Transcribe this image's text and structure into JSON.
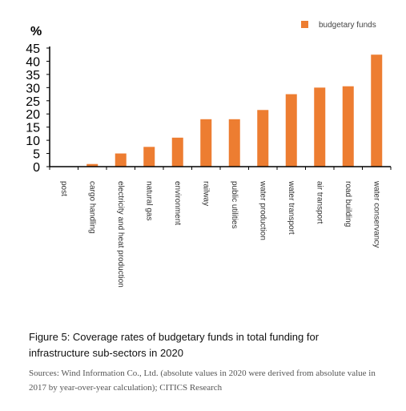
{
  "chart_data": {
    "type": "bar",
    "unit_label": "%",
    "legend": [
      {
        "name": "budgetary funds",
        "color": "#ED7D31"
      }
    ],
    "categories": [
      "post",
      "cargo handling",
      "electricity and heat production",
      "natural gas",
      "environment",
      "railway",
      "public utilities",
      "water production",
      "water transport",
      "air transport",
      "road building",
      "water conservancy"
    ],
    "series": [
      {
        "name": "budgetary funds",
        "color": "#ED7D31",
        "values": [
          0,
          1,
          5,
          7.5,
          11,
          18,
          18,
          21.5,
          27.5,
          30,
          30.5,
          42.5
        ]
      }
    ],
    "yticks": [
      0,
      5,
      10,
      15,
      20,
      25,
      30,
      35,
      40,
      45
    ],
    "ylim": [
      0,
      45
    ],
    "grid": false,
    "legend_position": "top-right"
  },
  "caption": {
    "title": "Figure 5: Coverage rates of budgetary funds in total funding for infrastructure sub-sectors in 2020",
    "source": "Sources: Wind Information Co., Ltd. (absolute values in 2020 were derived from absolute value in 2017 by year-over-year calculation); CITICS Research"
  }
}
